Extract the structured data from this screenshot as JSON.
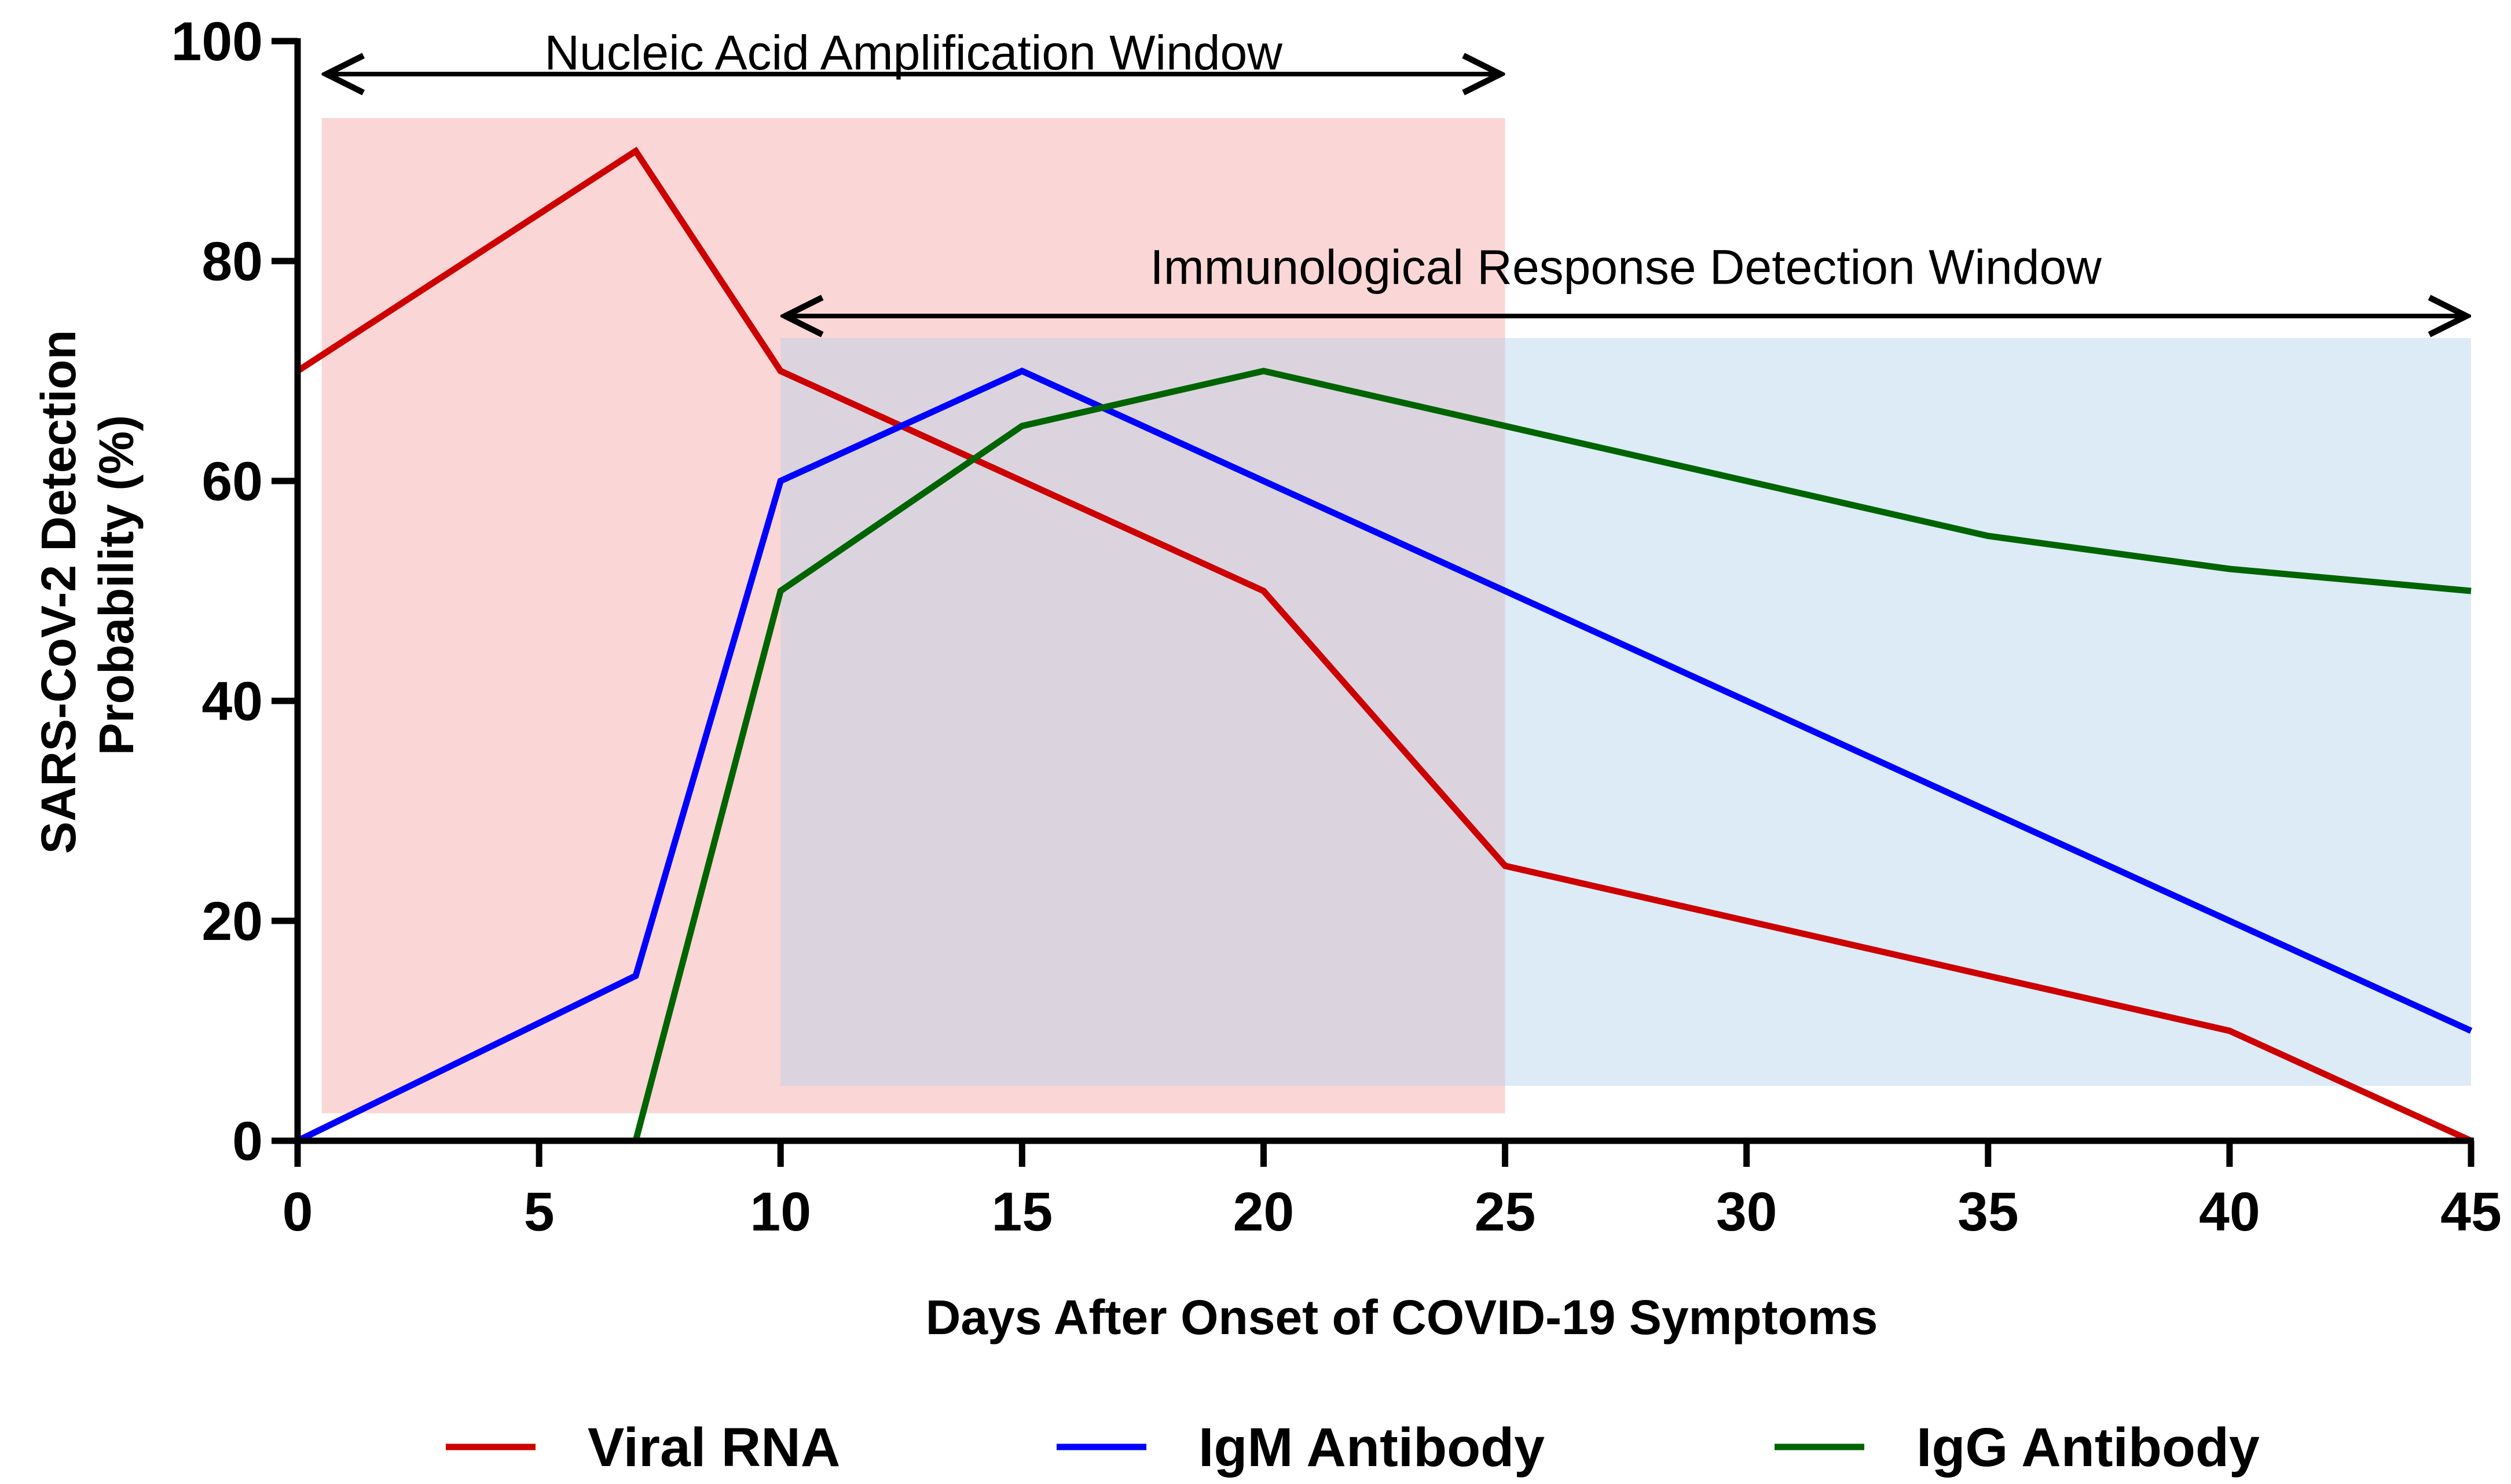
{
  "chart_data": {
    "type": "line",
    "xlabel": "Days After Onset of COVID-19 Symptoms",
    "ylabel_lines": [
      "SARS-CoV-2 Detection",
      "Probability (%)"
    ],
    "xlim": [
      0,
      45
    ],
    "ylim": [
      0,
      100
    ],
    "x_ticks": [
      0,
      5,
      10,
      15,
      20,
      25,
      30,
      35,
      40,
      45
    ],
    "y_ticks": [
      0,
      20,
      40,
      60,
      80,
      100
    ],
    "grid": false,
    "legend_position": "bottom",
    "series": [
      {
        "name": "Viral RNA",
        "color": "#CC0000",
        "points": [
          [
            0,
            70
          ],
          [
            7,
            90
          ],
          [
            10,
            70
          ],
          [
            15,
            60
          ],
          [
            20,
            50
          ],
          [
            25,
            25
          ],
          [
            30,
            20
          ],
          [
            35,
            15
          ],
          [
            40,
            10
          ],
          [
            45,
            0
          ]
        ]
      },
      {
        "name": "IgM Antibody",
        "color": "#0000FF",
        "points": [
          [
            0,
            0
          ],
          [
            7,
            15
          ],
          [
            10,
            60
          ],
          [
            15,
            70
          ],
          [
            20,
            60
          ],
          [
            25,
            50
          ],
          [
            30,
            40
          ],
          [
            35,
            30
          ],
          [
            40,
            20
          ],
          [
            45,
            10
          ]
        ]
      },
      {
        "name": "IgG Antibody",
        "color": "#006400",
        "points": [
          [
            0,
            0
          ],
          [
            7,
            0
          ],
          [
            10,
            50
          ],
          [
            15,
            65
          ],
          [
            20,
            70
          ],
          [
            25,
            65
          ],
          [
            30,
            60
          ],
          [
            35,
            55
          ],
          [
            40,
            52
          ],
          [
            45,
            50
          ]
        ]
      }
    ],
    "windows": [
      {
        "label": "Nucleic Acid Amplification Window",
        "x_start": 0.5,
        "x_end": 25,
        "y_low": 2.5,
        "y_high": 93,
        "arrow_y": 97,
        "label_y": 99,
        "color": "#F8B4B4",
        "opacity": 0.55
      },
      {
        "label": "Immunological Response Detection Window",
        "x_start": 10,
        "x_end": 45,
        "y_low": 5,
        "y_high": 73,
        "arrow_y": 75,
        "label_y": 79.5,
        "color": "#B4D2EA",
        "opacity": 0.45
      }
    ]
  }
}
